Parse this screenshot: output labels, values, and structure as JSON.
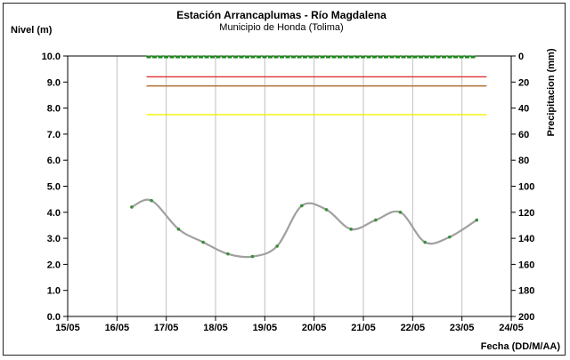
{
  "chart_data": {
    "type": "line",
    "title": "Estación Arrancaplumas - Río Magdalena",
    "subtitle": "Municipio de Honda (Tolima)",
    "ylabel_left": "Nivel (m)",
    "ylabel_right": "Precipitacion (mm)",
    "xlabel": "Fecha (DD/M/AA)",
    "x_ticks": [
      "15/05",
      "16/05",
      "17/05",
      "18/05",
      "19/05",
      "20/05",
      "21/05",
      "22/05",
      "23/05",
      "24/05"
    ],
    "y_ticks": [
      "0.0",
      "1.0",
      "2.0",
      "3.0",
      "4.0",
      "5.0",
      "6.0",
      "7.0",
      "8.0",
      "9.0",
      "10.0"
    ],
    "y2_ticks": [
      "0",
      "20",
      "40",
      "60",
      "80",
      "100",
      "120",
      "140",
      "160",
      "180",
      "200"
    ],
    "ylim": [
      0,
      10
    ],
    "y2lim": [
      0,
      200
    ],
    "y2_inverted": true,
    "grid": "vertical",
    "series": [
      {
        "values": [
          {
            "x": 1.3,
            "y": 4.2
          },
          {
            "x": 1.7,
            "y": 4.45
          },
          {
            "x": 2.25,
            "y": 3.35
          },
          {
            "x": 2.75,
            "y": 2.85
          },
          {
            "x": 3.25,
            "y": 2.4
          },
          {
            "x": 3.75,
            "y": 2.3
          },
          {
            "x": 4.25,
            "y": 2.7
          },
          {
            "x": 4.75,
            "y": 4.25
          },
          {
            "x": 5.25,
            "y": 4.1
          },
          {
            "x": 5.75,
            "y": 3.35
          },
          {
            "x": 6.25,
            "y": 3.7
          },
          {
            "x": 6.75,
            "y": 4.0
          },
          {
            "x": 7.25,
            "y": 2.85
          },
          {
            "x": 7.75,
            "y": 3.05
          },
          {
            "x": 8.3,
            "y": 3.7
          }
        ],
        "color": "#a0a0a0",
        "marker_color": "#3a8f3a"
      }
    ],
    "precipitation": {
      "x_start": 1.6,
      "x_end": 8.3,
      "value": 0,
      "color": "#1a8a1a"
    },
    "threshold_lines": [
      {
        "y": 9.2,
        "x_start": 1.6,
        "x_end": 8.5,
        "color": "#e03030"
      },
      {
        "y": 8.85,
        "x_start": 1.6,
        "x_end": 8.5,
        "color": "#b06a2a"
      },
      {
        "y": 7.75,
        "x_start": 1.6,
        "x_end": 8.5,
        "color": "#f2f200"
      }
    ],
    "colors": {
      "axis": "#000000",
      "grid": "#bfbfbf"
    }
  }
}
